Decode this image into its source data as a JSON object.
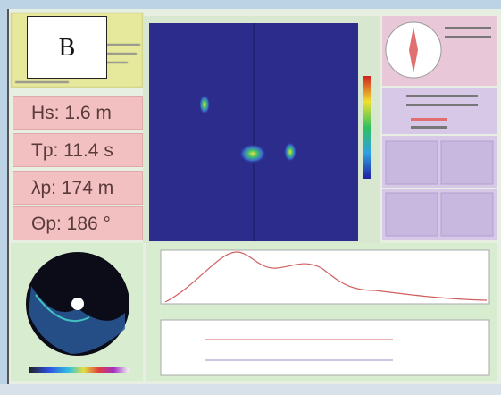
{
  "panel_label": "B",
  "readouts": [
    "Hs: 1.6 m",
    "Tp: 11.4 s",
    "λp: 174 m",
    "Θp: 186 °"
  ]
}
